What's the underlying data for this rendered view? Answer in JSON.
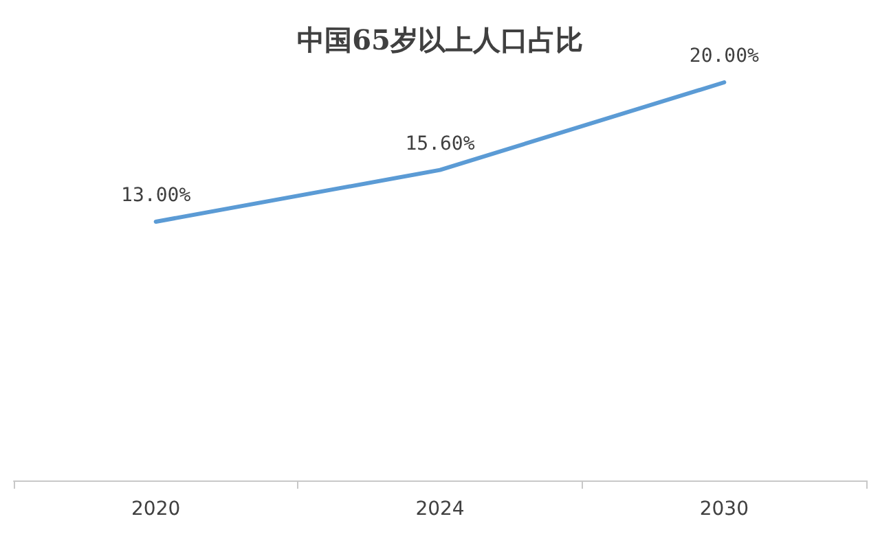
{
  "chart_data": {
    "type": "line",
    "title": "中国65岁以上人口占比",
    "categories": [
      "2020",
      "2024",
      "2030"
    ],
    "values": [
      13.0,
      15.6,
      20.0
    ],
    "value_labels": [
      "13.00%",
      "15.60%",
      "20.00%"
    ],
    "color": "#5b9bd5",
    "marker": "none"
  }
}
